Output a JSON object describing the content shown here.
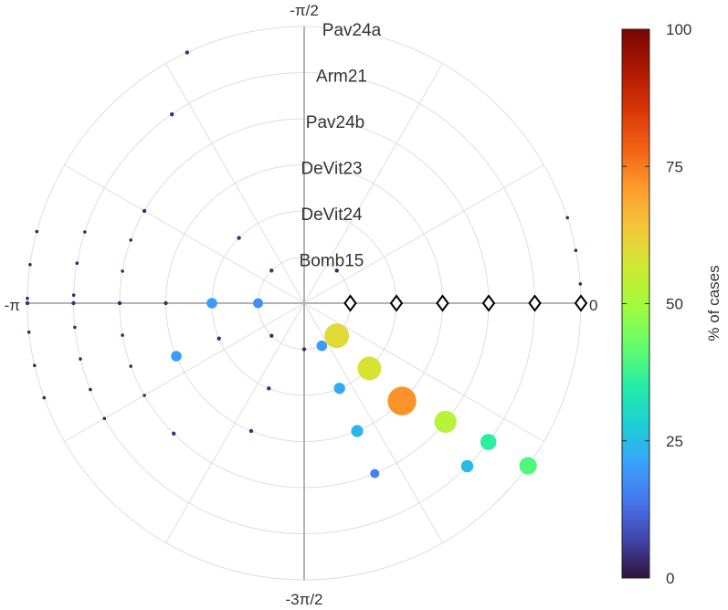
{
  "chart_data": {
    "type": "scatter",
    "coordinate_system": "polar",
    "angle_labels": {
      "right": "0",
      "top": "-π/2",
      "left": "-π",
      "bottom": "-3π/2"
    },
    "rings": [
      {
        "ring": 1,
        "label": "Bomb15"
      },
      {
        "ring": 2,
        "label": "DeVit24"
      },
      {
        "ring": 3,
        "label": "DeVit23"
      },
      {
        "ring": 4,
        "label": "Pav24b"
      },
      {
        "ring": 5,
        "label": "Arm21"
      },
      {
        "ring": 6,
        "label": "Pav24a"
      }
    ],
    "angle_direction": "clockwise-negative (angle measured from +x, increasing toward bottom)",
    "reference_markers": {
      "shape": "diamond",
      "angle": 0,
      "rings": [
        1,
        2,
        3,
        4,
        5,
        6
      ]
    },
    "points": [
      {
        "ring": 1,
        "angle_deg": 90,
        "pct": 4
      },
      {
        "ring": 1,
        "angle_deg": 135,
        "pct": 4
      },
      {
        "ring": 1,
        "angle_deg": 180,
        "pct": 18
      },
      {
        "ring": 1,
        "angle_deg": 225,
        "pct": 4
      },
      {
        "ring": 1,
        "angle_deg": 315,
        "pct": 3
      },
      {
        "ring": 1,
        "angle_deg": 45,
        "pct": 60
      },
      {
        "ring": 1,
        "angle_deg": 67.5,
        "pct": 20
      },
      {
        "ring": 2,
        "angle_deg": 45,
        "pct": 58
      },
      {
        "ring": 2,
        "angle_deg": 67.5,
        "pct": 22
      },
      {
        "ring": 2,
        "angle_deg": 112.5,
        "pct": 4
      },
      {
        "ring": 2,
        "angle_deg": 157.5,
        "pct": 4
      },
      {
        "ring": 2,
        "angle_deg": 180,
        "pct": 20
      },
      {
        "ring": 2,
        "angle_deg": 225,
        "pct": 4
      },
      {
        "ring": 3,
        "angle_deg": 45,
        "pct": 72
      },
      {
        "ring": 3,
        "angle_deg": 67.5,
        "pct": 24
      },
      {
        "ring": 3,
        "angle_deg": 157.5,
        "pct": 20
      },
      {
        "ring": 3,
        "angle_deg": 180,
        "pct": 4
      },
      {
        "ring": 3,
        "angle_deg": 112.5,
        "pct": 4
      },
      {
        "ring": 4,
        "angle_deg": 40,
        "pct": 53
      },
      {
        "ring": 4,
        "angle_deg": 67.5,
        "pct": 16
      },
      {
        "ring": 4,
        "angle_deg": 180,
        "pct": 4
      },
      {
        "ring": 4,
        "angle_deg": 210,
        "pct": 4
      },
      {
        "ring": 4,
        "angle_deg": 135,
        "pct": 4
      },
      {
        "ring": 5,
        "angle_deg": 37,
        "pct": 36
      },
      {
        "ring": 5,
        "angle_deg": 45,
        "pct": 25
      },
      {
        "ring": 5,
        "angle_deg": 180,
        "pct": 4
      },
      {
        "ring": 5,
        "angle_deg": 235,
        "pct": 4
      },
      {
        "ring": 6,
        "angle_deg": 36,
        "pct": 40
      },
      {
        "ring": 6,
        "angle_deg": 180,
        "pct": 4
      },
      {
        "ring": 6,
        "angle_deg": 245,
        "pct": 4
      }
    ],
    "grid": true,
    "colorbar": {
      "label": "% of cases",
      "ticks": [
        0,
        25,
        50,
        75,
        100
      ],
      "colormap": "turbo"
    }
  }
}
